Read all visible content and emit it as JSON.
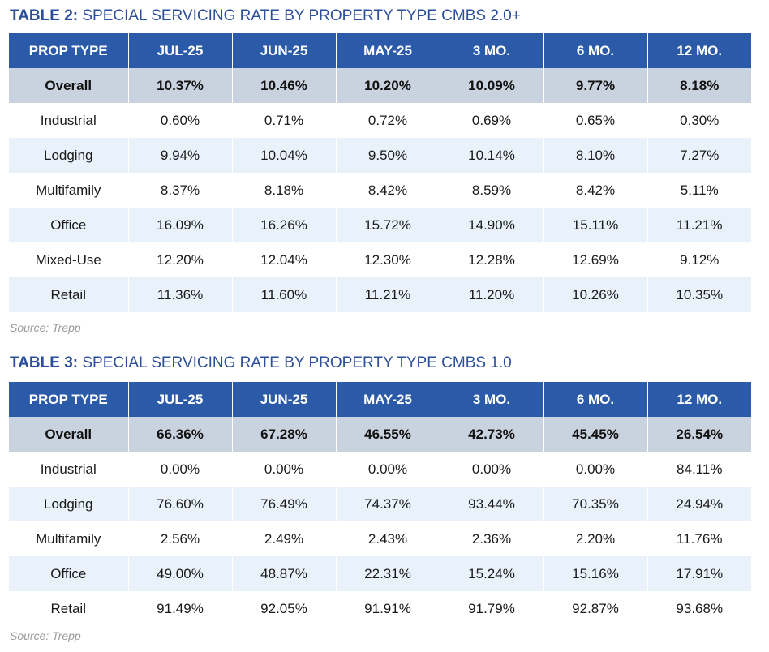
{
  "tables": [
    {
      "title_num": "TABLE 2:",
      "title_text": " SPECIAL SERVICING RATE BY PROPERTY TYPE CMBS 2.0+",
      "columns": [
        "PROP TYPE",
        "JUL-25",
        "JUN-25",
        "MAY-25",
        "3 MO.",
        "6 MO.",
        "12 MO."
      ],
      "rows": [
        [
          "Overall",
          "10.37%",
          "10.46%",
          "10.20%",
          "10.09%",
          "9.77%",
          "8.18%"
        ],
        [
          "Industrial",
          "0.60%",
          "0.71%",
          "0.72%",
          "0.69%",
          "0.65%",
          "0.30%"
        ],
        [
          "Lodging",
          "9.94%",
          "10.04%",
          "9.50%",
          "10.14%",
          "8.10%",
          "7.27%"
        ],
        [
          "Multifamily",
          "8.37%",
          "8.18%",
          "8.42%",
          "8.59%",
          "8.42%",
          "5.11%"
        ],
        [
          "Office",
          "16.09%",
          "16.26%",
          "15.72%",
          "14.90%",
          "15.11%",
          "11.21%"
        ],
        [
          "Mixed-Use",
          "12.20%",
          "12.04%",
          "12.30%",
          "12.28%",
          "12.69%",
          "9.12%"
        ],
        [
          "Retail",
          "11.36%",
          "11.60%",
          "11.21%",
          "11.20%",
          "10.26%",
          "10.35%"
        ]
      ],
      "source": "Source: Trepp"
    },
    {
      "title_num": "TABLE 3:",
      "title_text": " SPECIAL SERVICING RATE BY PROPERTY TYPE CMBS 1.0",
      "columns": [
        "PROP TYPE",
        "JUL-25",
        "JUN-25",
        "MAY-25",
        "3 MO.",
        "6 MO.",
        "12 MO."
      ],
      "rows": [
        [
          "Overall",
          "66.36%",
          "67.28%",
          "46.55%",
          "42.73%",
          "45.45%",
          "26.54%"
        ],
        [
          "Industrial",
          "0.00%",
          "0.00%",
          "0.00%",
          "0.00%",
          "0.00%",
          "84.11%"
        ],
        [
          "Lodging",
          "76.60%",
          "76.49%",
          "74.37%",
          "93.44%",
          "70.35%",
          "24.94%"
        ],
        [
          "Multifamily",
          "2.56%",
          "2.49%",
          "2.43%",
          "2.36%",
          "2.20%",
          "11.76%"
        ],
        [
          "Office",
          "49.00%",
          "48.87%",
          "22.31%",
          "15.24%",
          "15.16%",
          "17.91%"
        ],
        [
          "Retail",
          "91.49%",
          "92.05%",
          "91.91%",
          "91.79%",
          "92.87%",
          "93.68%"
        ]
      ],
      "source": "Source: Trepp"
    }
  ],
  "colors": {
    "title": "#2b4f9a",
    "header_bg": "#2a5aa8",
    "overall_bg": "#c9d3df",
    "alt_row_bg": "#e9f1fa",
    "source_text": "#9a9a9a"
  }
}
